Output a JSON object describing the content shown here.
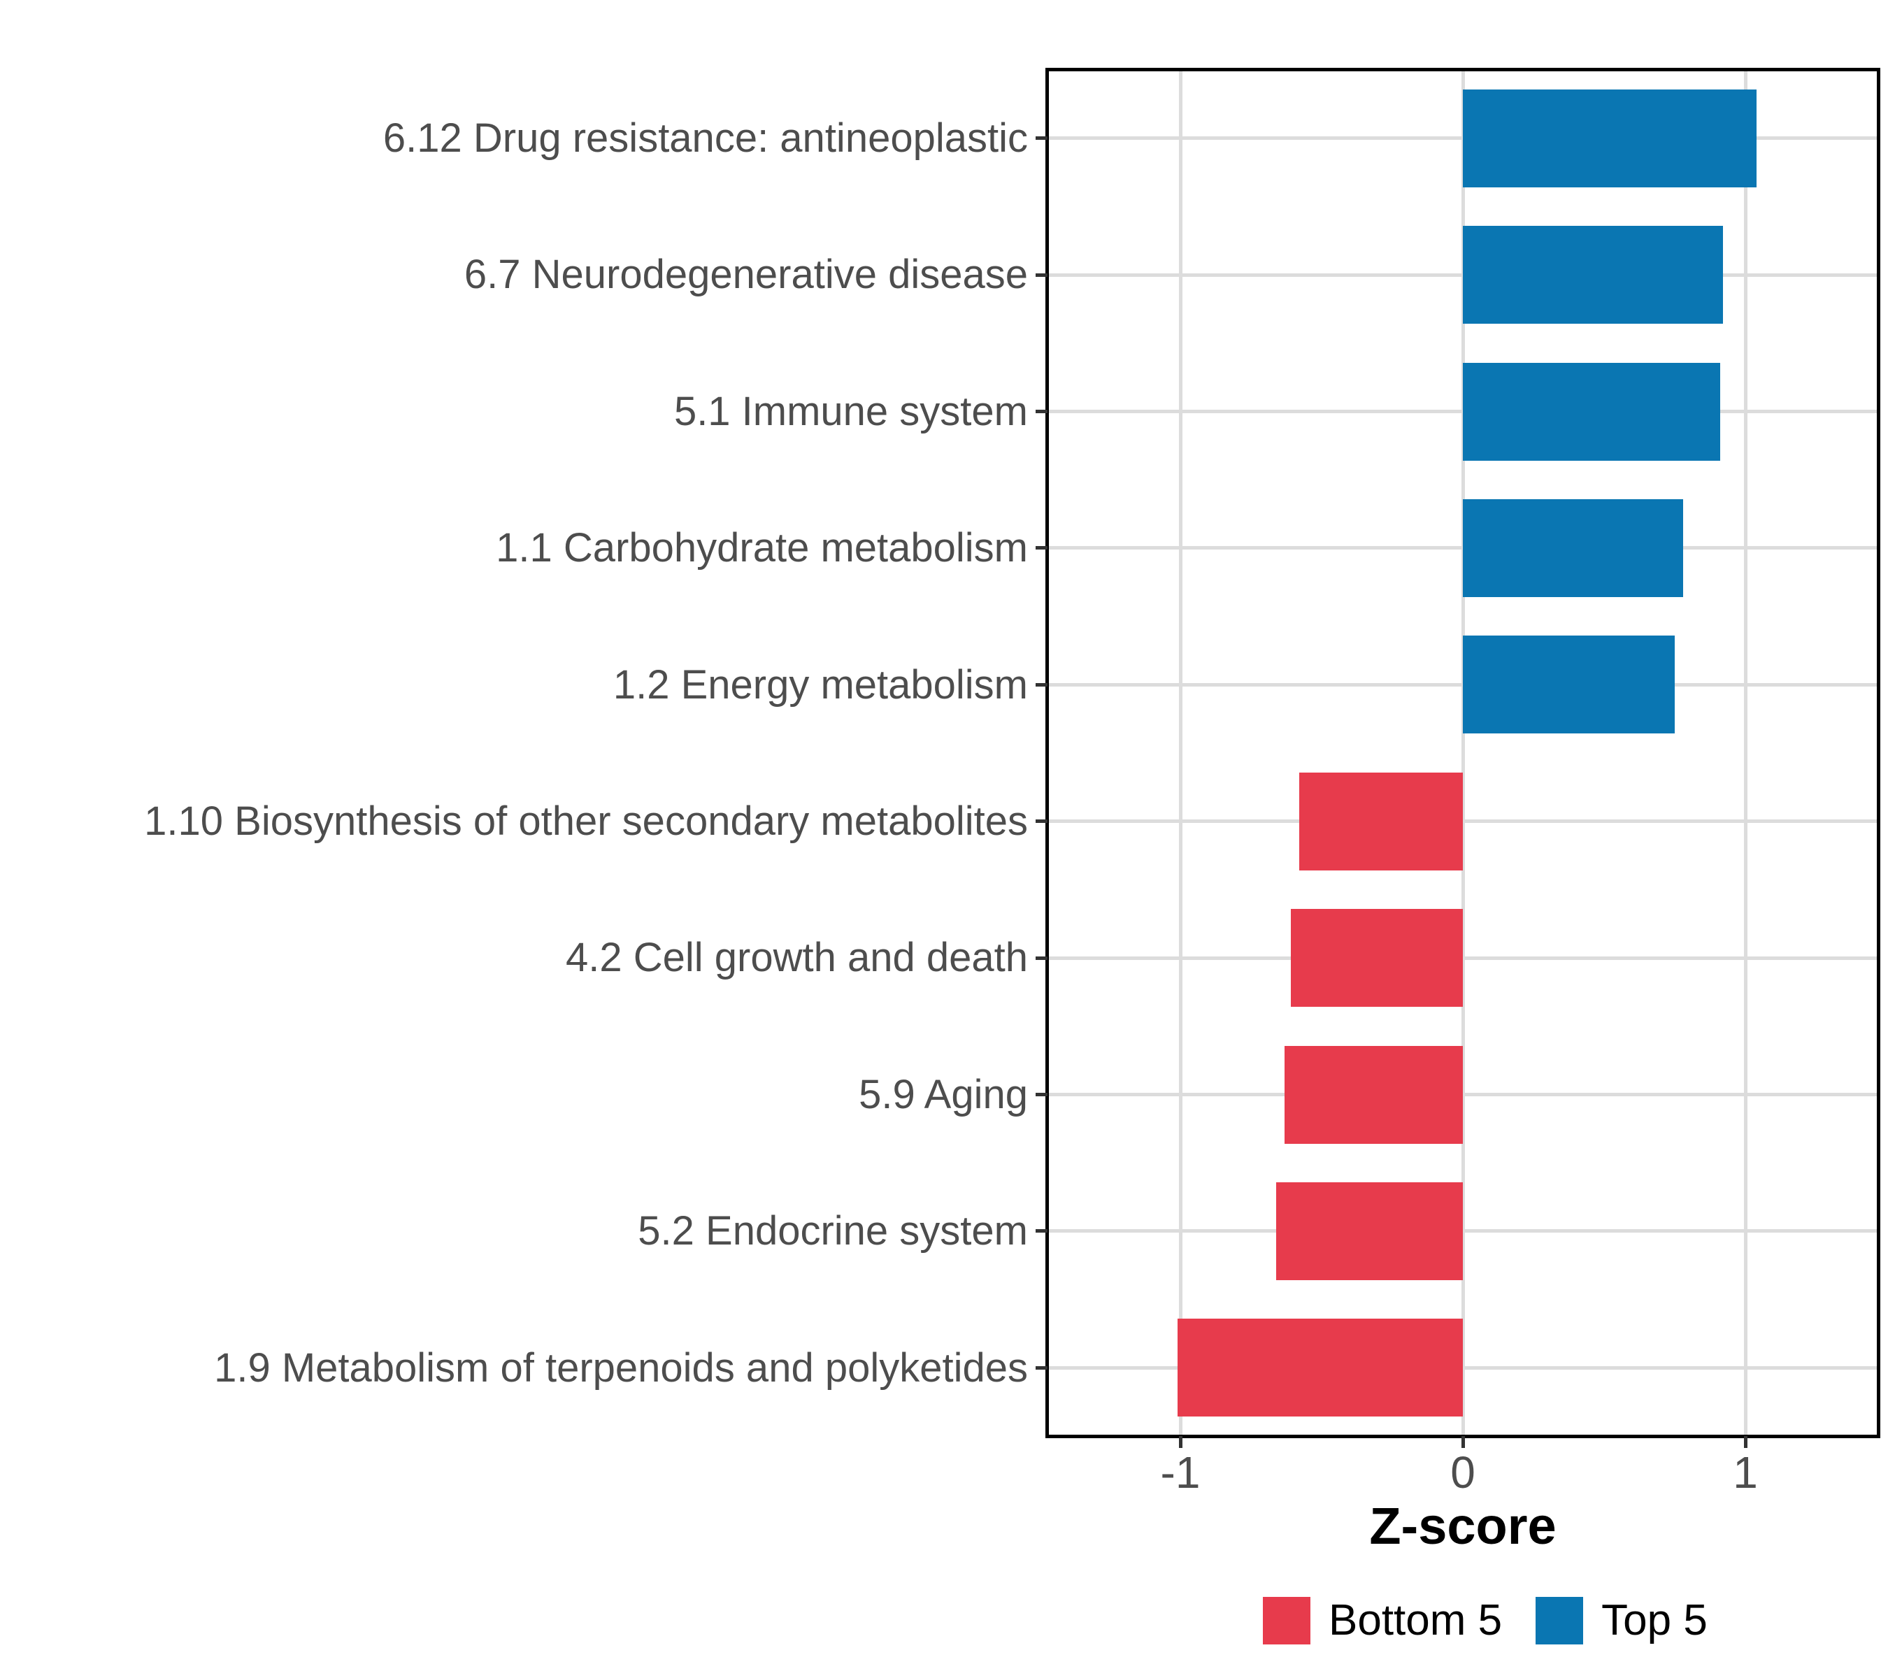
{
  "chart_data": {
    "type": "bar",
    "orientation": "horizontal",
    "title": "",
    "xlabel": "Z-score",
    "ylabel": "",
    "categories": [
      "6.12 Drug resistance: antineoplastic",
      "6.7 Neurodegenerative disease",
      "5.1 Immune system",
      "1.1 Carbohydrate metabolism",
      "1.2 Energy metabolism",
      "1.10 Biosynthesis of other secondary metabolites",
      "4.2 Cell growth and death",
      "5.9 Aging",
      "5.2 Endocrine system",
      "1.9 Metabolism of terpenoids and polyketides"
    ],
    "values": [
      1.04,
      0.92,
      0.91,
      0.78,
      0.75,
      -0.58,
      -0.61,
      -0.63,
      -0.66,
      -1.01
    ],
    "groups": [
      "Top 5",
      "Top 5",
      "Top 5",
      "Top 5",
      "Top 5",
      "Bottom 5",
      "Bottom 5",
      "Bottom 5",
      "Bottom 5",
      "Bottom 5"
    ],
    "x_ticks": [
      -1,
      0,
      1
    ],
    "x_tick_labels": [
      "-1",
      "0",
      "1"
    ],
    "xlim": [
      -1.47,
      1.47
    ],
    "grid": "major",
    "legend_position": "bottom-right"
  },
  "axis": {
    "x_title": "Z-score"
  },
  "legend": {
    "entries": [
      {
        "label": "Bottom 5",
        "color": "#e73b4c"
      },
      {
        "label": "Top 5",
        "color": "#0a76b2"
      }
    ]
  },
  "colors": {
    "positive_bar": "#0a76b2",
    "negative_bar": "#e73b4c",
    "gridline": "#dcdcdc",
    "panel_border": "#000000",
    "axis_text": "#4d4d4d",
    "axis_title": "#000000",
    "background": "#ffffff"
  }
}
